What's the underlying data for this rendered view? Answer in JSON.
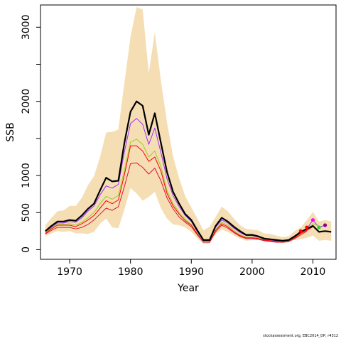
{
  "chart_data": {
    "type": "line",
    "xlabel": "Year",
    "ylabel": "SSB",
    "xlim": [
      1965.2,
      2013.8
    ],
    "ylim": [
      -130,
      3300
    ],
    "x_ticks": [
      1970,
      1980,
      1990,
      2000,
      2010
    ],
    "x_tick_labels": [
      "1970",
      "1980",
      "1990",
      "2000",
      "2010"
    ],
    "y_ticks": [
      0,
      500,
      1000,
      1500,
      2000,
      2500,
      3000
    ],
    "y_tick_labels": [
      "0",
      "500",
      "1000",
      "",
      "2000",
      "",
      "3000"
    ],
    "grid": false,
    "colors": {
      "band": "#F5DEB3",
      "main": "#000000",
      "purple": "#9B30FF",
      "lime": "#9ACD32",
      "red": "#FF0000",
      "crimson": "#DC143C",
      "dot_red": "#FF0000",
      "dot_magenta": "#FF00FF",
      "dot_green": "#32CD32",
      "dot_purple": "#8B008B"
    },
    "band": {
      "x": [
        1966,
        1967,
        1968,
        1969,
        1970,
        1971,
        1972,
        1973,
        1974,
        1975,
        1976,
        1977,
        1978,
        1979,
        1980,
        1981,
        1982,
        1983,
        1984,
        1985,
        1986,
        1987,
        1988,
        1989,
        1990,
        1991,
        1992,
        1993,
        1994,
        1995,
        1996,
        1997,
        1998,
        1999,
        2000,
        2001,
        2002,
        2003,
        2004,
        2005,
        2006,
        2007,
        2008,
        2009,
        2010,
        2011,
        2012,
        2013
      ],
      "upper": [
        330,
        430,
        520,
        530,
        590,
        590,
        700,
        870,
        990,
        1250,
        1580,
        1590,
        1620,
        2250,
        2870,
        3270,
        3240,
        2380,
        2930,
        2280,
        1720,
        1260,
        960,
        720,
        570,
        420,
        260,
        310,
        440,
        580,
        520,
        420,
        330,
        280,
        270,
        260,
        220,
        210,
        190,
        170,
        180,
        250,
        300,
        400,
        510,
        380,
        400,
        380
      ],
      "lower": [
        180,
        220,
        250,
        240,
        250,
        220,
        220,
        210,
        240,
        350,
        420,
        300,
        290,
        540,
        830,
        760,
        660,
        710,
        780,
        560,
        420,
        340,
        330,
        300,
        240,
        150,
        80,
        80,
        210,
        270,
        240,
        190,
        150,
        120,
        130,
        130,
        120,
        110,
        100,
        90,
        100,
        130,
        140,
        160,
        190,
        120,
        130,
        120
      ]
    },
    "series": [
      {
        "color_key": "main",
        "width": 2.2,
        "x": [
          1966,
          1967,
          1968,
          1969,
          1970,
          1971,
          1972,
          1973,
          1974,
          1975,
          1976,
          1977,
          1978,
          1979,
          1980,
          1981,
          1982,
          1983,
          1984,
          1985,
          1986,
          1987,
          1988,
          1989,
          1990,
          1991,
          1992,
          1993,
          1994,
          1995,
          1996,
          1997,
          1998,
          1999,
          2000,
          2001,
          2002,
          2003,
          2004,
          2005,
          2006,
          2007,
          2008,
          2009,
          2010,
          2011,
          2012,
          2013
        ],
        "values": [
          250,
          320,
          380,
          380,
          400,
          390,
          460,
          550,
          620,
          800,
          970,
          920,
          930,
          1440,
          1860,
          2000,
          1940,
          1550,
          1840,
          1440,
          1050,
          780,
          620,
          480,
          400,
          260,
          130,
          130,
          320,
          430,
          380,
          310,
          250,
          200,
          200,
          180,
          150,
          140,
          130,
          120,
          130,
          180,
          240,
          280,
          320,
          240,
          250,
          240
        ]
      },
      {
        "color_key": "purple",
        "width": 1,
        "x": [
          1966,
          1967,
          1968,
          1969,
          1970,
          1971,
          1972,
          1973,
          1974,
          1975,
          1976,
          1977,
          1978,
          1979,
          1980,
          1981,
          1982,
          1983,
          1984,
          1985,
          1986,
          1987,
          1988,
          1989,
          1990,
          1991,
          1992,
          1993,
          1994,
          1995,
          1996,
          1997,
          1998,
          1999,
          2000,
          2001,
          2002,
          2003,
          2004,
          2005,
          2006,
          2007,
          2008,
          2009,
          2010,
          2011,
          2012
        ],
        "values": [
          240,
          300,
          360,
          360,
          380,
          370,
          430,
          520,
          590,
          740,
          860,
          830,
          880,
          1320,
          1700,
          1770,
          1690,
          1420,
          1640,
          1310,
          960,
          730,
          580,
          460,
          380,
          240,
          120,
          120,
          300,
          400,
          360,
          290,
          230,
          190,
          190,
          170,
          140,
          130,
          120,
          110,
          120,
          170,
          230,
          280,
          400,
          300,
          330
        ]
      },
      {
        "color_key": "lime",
        "width": 1,
        "x": [
          1966,
          1967,
          1968,
          1969,
          1970,
          1971,
          1972,
          1973,
          1974,
          1975,
          1976,
          1977,
          1978,
          1979,
          1980,
          1981,
          1982,
          1983,
          1984,
          1985,
          1986,
          1987,
          1988,
          1989,
          1990,
          1991,
          1992,
          1993,
          1994,
          1995,
          1996,
          1997,
          1998,
          1999,
          2000,
          2001,
          2002,
          2003,
          2004,
          2005,
          2006,
          2007,
          2008,
          2009,
          2010,
          2011
        ],
        "values": [
          230,
          290,
          340,
          340,
          350,
          330,
          370,
          430,
          500,
          620,
          720,
          680,
          730,
          1070,
          1450,
          1490,
          1420,
          1250,
          1330,
          1120,
          800,
          620,
          500,
          410,
          340,
          220,
          110,
          110,
          270,
          370,
          330,
          260,
          200,
          170,
          170,
          160,
          130,
          120,
          110,
          110,
          120,
          170,
          230,
          270,
          350,
          320
        ]
      },
      {
        "color_key": "red",
        "width": 1,
        "x": [
          1966,
          1967,
          1968,
          1969,
          1970,
          1971,
          1972,
          1973,
          1974,
          1975,
          1976,
          1977,
          1978,
          1979,
          1980,
          1981,
          1982,
          1983,
          1984,
          1985,
          1986,
          1987,
          1988,
          1989,
          1990,
          1991,
          1992,
          1993,
          1994,
          1995,
          1996,
          1997,
          1998,
          1999,
          2000,
          2001,
          2002,
          2003,
          2004,
          2005,
          2006,
          2007,
          2008,
          2009,
          2010
        ],
        "values": [
          220,
          280,
          330,
          330,
          330,
          310,
          350,
          400,
          460,
          560,
          660,
          620,
          670,
          1010,
          1400,
          1400,
          1330,
          1190,
          1250,
          1060,
          760,
          590,
          480,
          390,
          330,
          210,
          100,
          100,
          260,
          350,
          310,
          240,
          190,
          160,
          160,
          150,
          130,
          120,
          110,
          100,
          110,
          160,
          220,
          260,
          310
        ]
      },
      {
        "color_key": "crimson",
        "width": 1,
        "x": [
          1966,
          1967,
          1968,
          1969,
          1970,
          1971,
          1972,
          1973,
          1974,
          1975,
          1976,
          1977,
          1978,
          1979,
          1980,
          1981,
          1982,
          1983,
          1984,
          1985,
          1986,
          1987,
          1988,
          1989,
          1990,
          1991,
          1992,
          1993,
          1994,
          1995,
          1996,
          1997,
          1998,
          1999,
          2000,
          2001,
          2002,
          2003,
          2004,
          2005,
          2006,
          2007,
          2008,
          2009
        ],
        "values": [
          210,
          260,
          300,
          300,
          300,
          280,
          300,
          340,
          400,
          480,
          560,
          530,
          580,
          850,
          1160,
          1170,
          1110,
          1020,
          1100,
          930,
          700,
          550,
          440,
          370,
          310,
          200,
          100,
          100,
          240,
          330,
          290,
          230,
          180,
          150,
          150,
          140,
          120,
          110,
          100,
          100,
          110,
          150,
          200,
          250
        ]
      }
    ],
    "points": [
      {
        "x": 2008,
        "y": 250,
        "color_key": "dot_red"
      },
      {
        "x": 2009,
        "y": 300,
        "color_key": "dot_red"
      },
      {
        "x": 2010,
        "y": 400,
        "color_key": "dot_magenta"
      },
      {
        "x": 2011,
        "y": 300,
        "color_key": "dot_green"
      },
      {
        "x": 2012,
        "y": 330,
        "color_key": "dot_purple"
      }
    ]
  },
  "footer": "stockassessment.org, EBC2014_DP, r4312"
}
